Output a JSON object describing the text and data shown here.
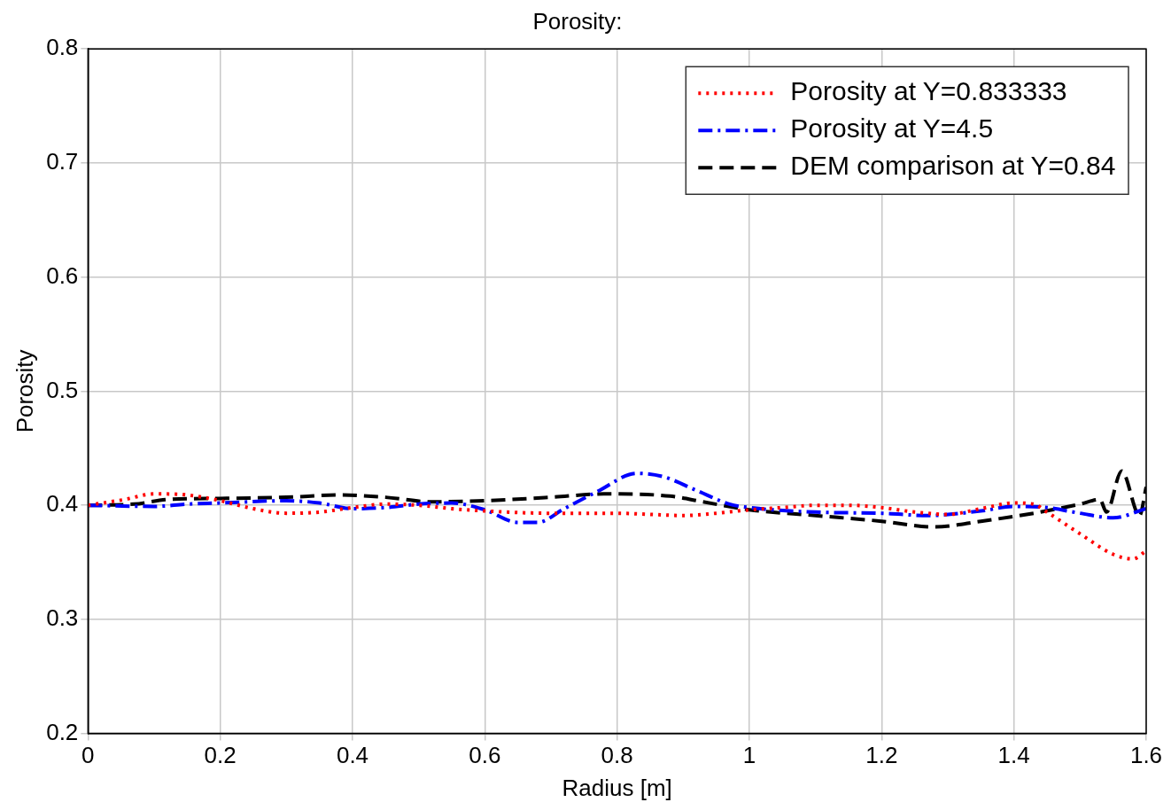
{
  "chart_data": {
    "type": "line",
    "title": "Porosity:",
    "xlabel": "Radius [m]",
    "ylabel": "Porosity",
    "xlim": [
      0,
      1.6
    ],
    "xticks": [
      0,
      0.2,
      0.4,
      0.6,
      0.8,
      1,
      1.2,
      1.4,
      1.6
    ],
    "ylim": [
      0.2,
      0.8
    ],
    "yticks": [
      0.2,
      0.3,
      0.4,
      0.5,
      0.6,
      0.7,
      0.8
    ],
    "grid": true,
    "legend": "top right",
    "marker": "none",
    "series": [
      {
        "name": "Porosity at Y=0.833333",
        "color": "#ff0000",
        "line_style": "dotted",
        "x": [
          0,
          0.055,
          0.1,
          0.15,
          0.2,
          0.25,
          0.3,
          0.35,
          0.4,
          0.45,
          0.5,
          0.55,
          0.6,
          0.7,
          0.8,
          0.85,
          0.9,
          0.95,
          1.0,
          1.05,
          1.1,
          1.15,
          1.2,
          1.25,
          1.3,
          1.35,
          1.4,
          1.43,
          1.45,
          1.5,
          1.55,
          1.58,
          1.6
        ],
        "values": [
          0.4,
          0.405,
          0.41,
          0.409,
          0.404,
          0.397,
          0.393,
          0.394,
          0.398,
          0.401,
          0.4,
          0.397,
          0.395,
          0.393,
          0.393,
          0.392,
          0.391,
          0.393,
          0.396,
          0.398,
          0.4,
          0.4,
          0.398,
          0.394,
          0.392,
          0.397,
          0.402,
          0.401,
          0.394,
          0.375,
          0.357,
          0.353,
          0.36
        ]
      },
      {
        "name": "Porosity at Y=4.5",
        "color": "#0000ff",
        "line_style": "dashdot",
        "x": [
          0,
          0.1,
          0.15,
          0.2,
          0.3,
          0.35,
          0.4,
          0.45,
          0.5,
          0.55,
          0.6,
          0.65,
          0.68,
          0.72,
          0.77,
          0.83,
          0.87,
          0.92,
          0.97,
          1.0,
          1.1,
          1.2,
          1.27,
          1.35,
          1.4,
          1.45,
          1.5,
          1.55,
          1.6
        ],
        "values": [
          0.4,
          0.399,
          0.401,
          0.402,
          0.404,
          0.402,
          0.397,
          0.398,
          0.401,
          0.402,
          0.396,
          0.385,
          0.385,
          0.397,
          0.412,
          0.428,
          0.425,
          0.413,
          0.401,
          0.398,
          0.394,
          0.393,
          0.391,
          0.395,
          0.399,
          0.398,
          0.393,
          0.389,
          0.397
        ]
      },
      {
        "name": "DEM comparison at Y=0.84",
        "color": "#000000",
        "line_style": "dashed",
        "x": [
          0,
          0.07,
          0.12,
          0.2,
          0.3,
          0.38,
          0.45,
          0.52,
          0.6,
          0.7,
          0.78,
          0.88,
          0.93,
          1.0,
          1.1,
          1.2,
          1.28,
          1.35,
          1.43,
          1.5,
          1.53,
          1.54,
          1.563,
          1.59,
          1.6
        ],
        "values": [
          0.4,
          0.401,
          0.405,
          0.406,
          0.407,
          0.409,
          0.407,
          0.403,
          0.404,
          0.407,
          0.41,
          0.408,
          0.403,
          0.396,
          0.391,
          0.386,
          0.381,
          0.386,
          0.393,
          0.401,
          0.405,
          0.394,
          0.43,
          0.391,
          0.416
        ]
      }
    ]
  }
}
